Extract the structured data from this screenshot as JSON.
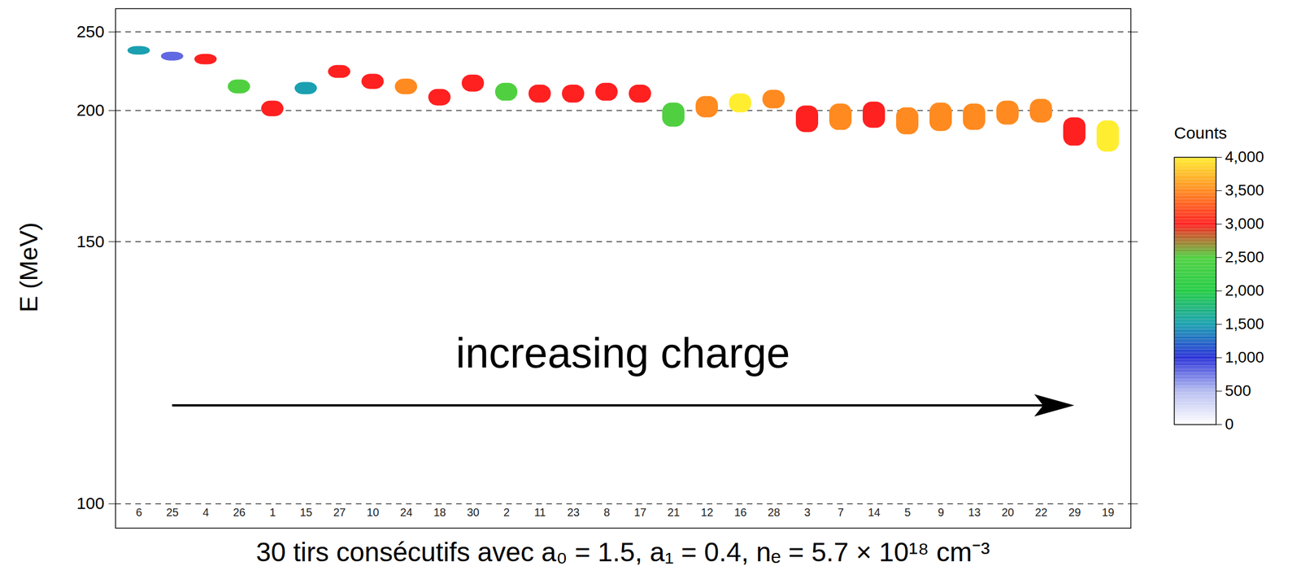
{
  "chart_data": {
    "type": "spectrum_strips",
    "title": "30 tirs consécutifs avec a₀ = 1.5, a₁ = 0.4, nₑ = 5.7 × 10¹⁸ cm⁻³",
    "annotation": "increasing charge",
    "ylabel": "E (MeV)",
    "categories": [
      "6",
      "25",
      "4",
      "26",
      "1",
      "15",
      "27",
      "10",
      "24",
      "18",
      "30",
      "2",
      "11",
      "23",
      "8",
      "17",
      "21",
      "12",
      "16",
      "28",
      "3",
      "7",
      "14",
      "5",
      "9",
      "13",
      "20",
      "22",
      "29",
      "19"
    ],
    "values": [
      236,
      232,
      230,
      213,
      201,
      212,
      222,
      216,
      213,
      207,
      215,
      210,
      209,
      209,
      210,
      209,
      198,
      202,
      204,
      206,
      196,
      197,
      198,
      195,
      197,
      197,
      199,
      200,
      190,
      188
    ],
    "counts": [
      1500,
      800,
      3000,
      2500,
      3000,
      1500,
      3000,
      3000,
      3500,
      3000,
      3000,
      2500,
      3000,
      3000,
      3000,
      3000,
      2500,
      3500,
      4000,
      3500,
      3000,
      3500,
      3000,
      3500,
      3500,
      3500,
      3500,
      3500,
      3000,
      4000
    ],
    "spread": [
      6,
      6,
      7,
      8,
      8,
      7,
      8,
      9,
      9,
      9,
      10,
      10,
      10,
      10,
      10,
      10,
      12,
      11,
      10,
      10,
      13,
      13,
      13,
      13,
      14,
      13,
      12,
      12,
      13,
      14
    ],
    "ylim": [
      97,
      270
    ],
    "yticks": [
      100,
      150,
      200,
      250
    ],
    "grid": true,
    "colorbar": {
      "label": "Counts",
      "range": [
        0,
        4000
      ],
      "ticks": [
        0,
        500,
        1000,
        1500,
        2000,
        2500,
        3000,
        3500,
        4000
      ]
    }
  }
}
